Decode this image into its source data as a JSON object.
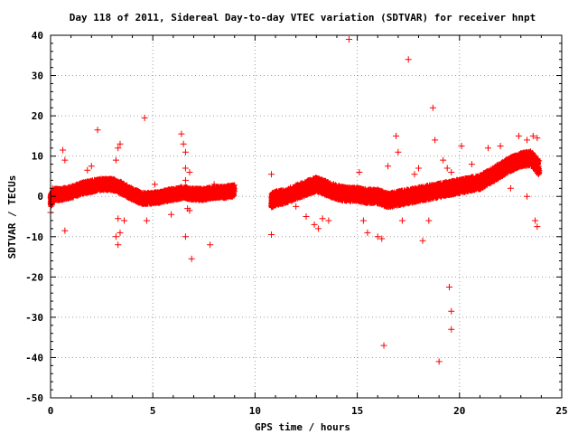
{
  "chart_data": {
    "type": "scatter",
    "title": "Day 118 of 2011, Sidereal Day-to-day VTEC variation (SDTVAR) for receiver hnpt",
    "xlabel": "GPS time / hours",
    "ylabel": "SDTVAR / TECUs",
    "xlim": [
      0,
      25
    ],
    "ylim": [
      -50,
      40
    ],
    "x_ticks": [
      0,
      5,
      10,
      15,
      20,
      25
    ],
    "y_ticks": [
      40,
      30,
      20,
      10,
      0,
      -10,
      -20,
      -30,
      -40,
      -50
    ],
    "x_tick_labels": [
      "0",
      "5",
      "10",
      "15",
      "20",
      "25"
    ],
    "y_tick_labels": [
      "40",
      "30",
      "20",
      "10",
      "0",
      "-10",
      "-20",
      "-30",
      "-40",
      "-50"
    ],
    "grid": true,
    "marker": "plus",
    "series": [
      {
        "name": "SDTVAR",
        "color": "#ff0000",
        "band": {
          "description": "dense band of points (estimated center line and half-width)",
          "segments": [
            {
              "x": [
                0.0,
                0.2,
                0.5,
                1.0,
                1.5,
                2.0,
                2.5,
                3.0,
                3.5,
                4.0,
                4.5,
                5.0,
                5.5,
                6.0,
                6.5,
                7.0,
                7.5,
                8.0,
                8.5,
                9.0
              ],
              "y": [
                -1.0,
                0.5,
                0.5,
                1.0,
                2.0,
                2.5,
                3.0,
                3.0,
                2.0,
                0.5,
                -0.5,
                -0.5,
                0.0,
                0.5,
                1.0,
                0.5,
                0.5,
                1.0,
                1.0,
                1.5
              ],
              "halfwidth": 1.5
            },
            {
              "x": [
                10.8,
                11.0,
                11.5,
                12.0,
                12.5,
                13.0,
                13.5,
                14.0,
                14.5,
                15.0,
                15.5,
                16.0,
                16.5,
                17.0,
                17.5,
                18.0,
                18.5,
                19.0,
                19.5,
                20.0,
                20.5,
                21.0,
                21.5,
                22.0,
                22.5,
                23.0,
                23.5,
                23.9
              ],
              "y": [
                -1.0,
                -0.5,
                0.0,
                1.0,
                2.0,
                3.0,
                2.0,
                1.0,
                0.5,
                0.5,
                0.0,
                0.0,
                -1.0,
                -0.5,
                0.0,
                0.5,
                1.0,
                1.5,
                2.0,
                2.5,
                3.0,
                3.5,
                5.0,
                6.5,
                8.0,
                9.0,
                9.5,
                7.0
              ],
              "halfwidth": 1.8
            }
          ]
        },
        "outliers": [
          {
            "x": 0.0,
            "y": -4
          },
          {
            "x": 0.1,
            "y": 2
          },
          {
            "x": 0.6,
            "y": 11.5
          },
          {
            "x": 0.7,
            "y": 9
          },
          {
            "x": 0.7,
            "y": -8.5
          },
          {
            "x": 1.8,
            "y": 6.5
          },
          {
            "x": 2.0,
            "y": 7.5
          },
          {
            "x": 2.3,
            "y": 16.5
          },
          {
            "x": 3.2,
            "y": 9
          },
          {
            "x": 3.3,
            "y": 12
          },
          {
            "x": 3.4,
            "y": 13
          },
          {
            "x": 3.3,
            "y": -5.5
          },
          {
            "x": 3.2,
            "y": -10
          },
          {
            "x": 3.3,
            "y": -12
          },
          {
            "x": 3.4,
            "y": -9
          },
          {
            "x": 3.6,
            "y": -6
          },
          {
            "x": 4.6,
            "y": 19.5
          },
          {
            "x": 4.7,
            "y": -6
          },
          {
            "x": 5.1,
            "y": 3
          },
          {
            "x": 5.6,
            "y": 1
          },
          {
            "x": 5.9,
            "y": -4.5
          },
          {
            "x": 6.4,
            "y": 15.5
          },
          {
            "x": 6.5,
            "y": 13
          },
          {
            "x": 6.6,
            "y": 11
          },
          {
            "x": 6.6,
            "y": 7
          },
          {
            "x": 6.8,
            "y": 6
          },
          {
            "x": 6.6,
            "y": 4
          },
          {
            "x": 6.7,
            "y": -3
          },
          {
            "x": 6.6,
            "y": -10
          },
          {
            "x": 6.8,
            "y": -3.5
          },
          {
            "x": 6.9,
            "y": -15.5
          },
          {
            "x": 7.8,
            "y": -12
          },
          {
            "x": 8.0,
            "y": 3
          },
          {
            "x": 10.8,
            "y": 5.5
          },
          {
            "x": 10.8,
            "y": -9.5
          },
          {
            "x": 12.0,
            "y": -2.5
          },
          {
            "x": 12.5,
            "y": -5
          },
          {
            "x": 12.9,
            "y": -7
          },
          {
            "x": 13.1,
            "y": -8
          },
          {
            "x": 13.3,
            "y": -5.5
          },
          {
            "x": 13.6,
            "y": -6
          },
          {
            "x": 14.6,
            "y": 39
          },
          {
            "x": 15.1,
            "y": 6
          },
          {
            "x": 15.3,
            "y": -6
          },
          {
            "x": 15.5,
            "y": -9
          },
          {
            "x": 16.0,
            "y": -10
          },
          {
            "x": 16.2,
            "y": -10.5
          },
          {
            "x": 16.3,
            "y": -37
          },
          {
            "x": 16.5,
            "y": 7.5
          },
          {
            "x": 16.9,
            "y": 15
          },
          {
            "x": 17.0,
            "y": 11
          },
          {
            "x": 17.2,
            "y": -6
          },
          {
            "x": 17.5,
            "y": 34
          },
          {
            "x": 17.8,
            "y": 5.5
          },
          {
            "x": 18.0,
            "y": 7
          },
          {
            "x": 18.2,
            "y": -11
          },
          {
            "x": 18.5,
            "y": -6
          },
          {
            "x": 18.7,
            "y": 22
          },
          {
            "x": 18.8,
            "y": 14
          },
          {
            "x": 19.0,
            "y": -41
          },
          {
            "x": 19.2,
            "y": 9
          },
          {
            "x": 19.4,
            "y": 7
          },
          {
            "x": 19.5,
            "y": -22.5
          },
          {
            "x": 19.6,
            "y": -28.5
          },
          {
            "x": 19.6,
            "y": -33
          },
          {
            "x": 19.6,
            "y": 6
          },
          {
            "x": 20.1,
            "y": 12.5
          },
          {
            "x": 20.6,
            "y": 8
          },
          {
            "x": 21.4,
            "y": 12
          },
          {
            "x": 22.0,
            "y": 12.5
          },
          {
            "x": 22.9,
            "y": 15
          },
          {
            "x": 23.3,
            "y": 14
          },
          {
            "x": 23.6,
            "y": 15
          },
          {
            "x": 23.8,
            "y": 14.5
          },
          {
            "x": 23.7,
            "y": -6
          },
          {
            "x": 23.8,
            "y": -7.5
          },
          {
            "x": 23.3,
            "y": 0
          },
          {
            "x": 22.5,
            "y": 2
          }
        ]
      }
    ]
  }
}
